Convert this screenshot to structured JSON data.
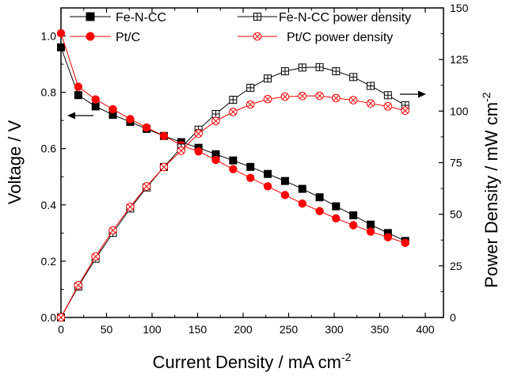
{
  "chart_data": {
    "type": "line",
    "xlabel": "Current Density / mA cm",
    "xlabel_sup": "-2",
    "ylabel_left": "Voltage / V",
    "ylabel_right": "Power Density / mW cm",
    "ylabel_right_sup": "-2",
    "xlim": [
      0,
      420
    ],
    "ylim_left": [
      0,
      1.1
    ],
    "ylim_right": [
      0,
      150
    ],
    "x_ticks": [
      0,
      50,
      100,
      150,
      200,
      250,
      300,
      350,
      400
    ],
    "y_left_ticks": [
      "0.0",
      "0.2",
      "0.4",
      "0.6",
      "0.8",
      "1.0"
    ],
    "y_right_ticks": [
      "0",
      "25",
      "50",
      "75",
      "100",
      "125",
      "150"
    ],
    "x": [
      0,
      19,
      38,
      57,
      76,
      94,
      113,
      132,
      151,
      170,
      189,
      208,
      227,
      246,
      265,
      284,
      302,
      321,
      340,
      359,
      378
    ],
    "series": [
      {
        "name": "Fe-N-CC",
        "axis": "left",
        "marker": "square-filled",
        "color": "#000000",
        "values": [
          0.96,
          0.79,
          0.75,
          0.72,
          0.695,
          0.67,
          0.645,
          0.623,
          0.603,
          0.58,
          0.558,
          0.535,
          0.51,
          0.485,
          0.457,
          0.427,
          0.395,
          0.363,
          0.33,
          0.3,
          0.272
        ]
      },
      {
        "name": "Pt/C",
        "axis": "left",
        "marker": "circle-filled",
        "color": "#ff0000",
        "values": [
          1.01,
          0.82,
          0.775,
          0.74,
          0.705,
          0.675,
          0.645,
          0.612,
          0.59,
          0.56,
          0.527,
          0.496,
          0.466,
          0.435,
          0.405,
          0.378,
          0.352,
          0.328,
          0.305,
          0.285,
          0.265
        ]
      },
      {
        "name": "Fe-N-CC power density",
        "axis": "right",
        "marker": "square-plus",
        "color": "#000000",
        "values": [
          0,
          15,
          28.5,
          41,
          52.8,
          63,
          72.9,
          82.3,
          91,
          98.6,
          105.5,
          111.3,
          115.8,
          119.3,
          121.1,
          121.3,
          119.3,
          116.5,
          112.2,
          107.7,
          102.8
        ]
      },
      {
        "name": "Pt/C power density",
        "axis": "right",
        "marker": "circle-cross",
        "color": "#ff0000",
        "values": [
          0,
          15.6,
          29.5,
          42.2,
          53.6,
          63.5,
          72.9,
          80.8,
          89.1,
          95.2,
          99.6,
          103.2,
          105.8,
          107,
          107.3,
          107.4,
          106.3,
          105.3,
          103.7,
          102.3,
          100.2
        ]
      }
    ],
    "legend_placement": "top"
  }
}
